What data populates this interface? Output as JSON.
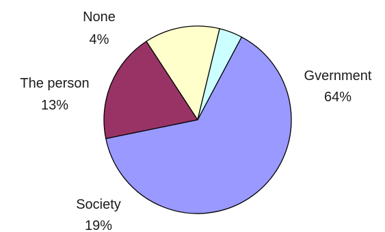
{
  "chart_data": {
    "type": "pie",
    "title": "",
    "categories": [
      "Gvernment",
      "Society",
      "The person",
      "None"
    ],
    "values": [
      64,
      19,
      13,
      4
    ],
    "value_labels": [
      "64%",
      "19%",
      "13%",
      "4%"
    ],
    "colors": [
      "#9999ff",
      "#993366",
      "#ffffcc",
      "#ccffff"
    ],
    "start": "12 o'clock boundary of None and Gvernment, clockwise",
    "legend": "none (labels beside slices)"
  }
}
